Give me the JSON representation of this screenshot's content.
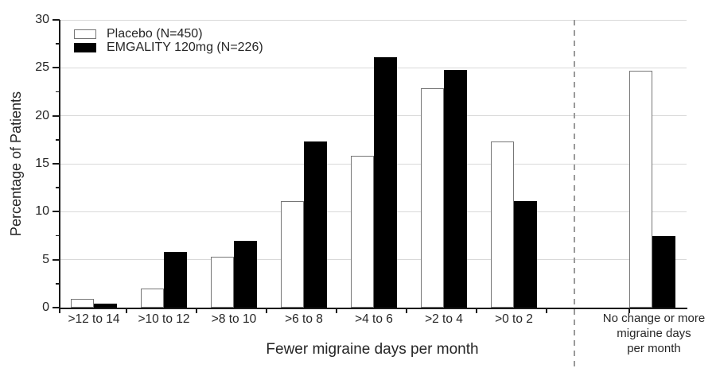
{
  "chart_data": {
    "type": "bar",
    "title": "",
    "ylabel": "Percentage of Patients",
    "xlabel": "Fewer migraine days per month",
    "ylim": [
      0,
      30
    ],
    "yticks": [
      0,
      5,
      10,
      15,
      20,
      25,
      30
    ],
    "grid": true,
    "legend_position": "top-left",
    "categories": [
      ">12 to 14",
      ">10 to 12",
      ">8 to 10",
      ">6 to 8",
      ">4 to 6",
      ">2 to 4",
      ">0 to 2"
    ],
    "no_change_category": {
      "label_lines": [
        "No change or more",
        "migraine days",
        "per month"
      ]
    },
    "series": [
      {
        "name": "Placebo (N=450)",
        "fill": "#ffffff",
        "stroke": "#767676",
        "values": [
          0.9,
          2.0,
          5.3,
          11.1,
          15.8,
          22.9,
          17.3
        ],
        "no_change_value": 24.7
      },
      {
        "name": "EMGALITY 120mg (N=226)",
        "fill": "#000000",
        "stroke": "#000000",
        "values": [
          0.4,
          5.8,
          7.0,
          17.3,
          26.1,
          24.8,
          11.1
        ],
        "no_change_value": 7.5
      }
    ],
    "colors": {
      "gridline": "#d9d9d9",
      "axis": "#1a1a1a",
      "divider": "#9a9a9a",
      "text": "#262626"
    }
  }
}
